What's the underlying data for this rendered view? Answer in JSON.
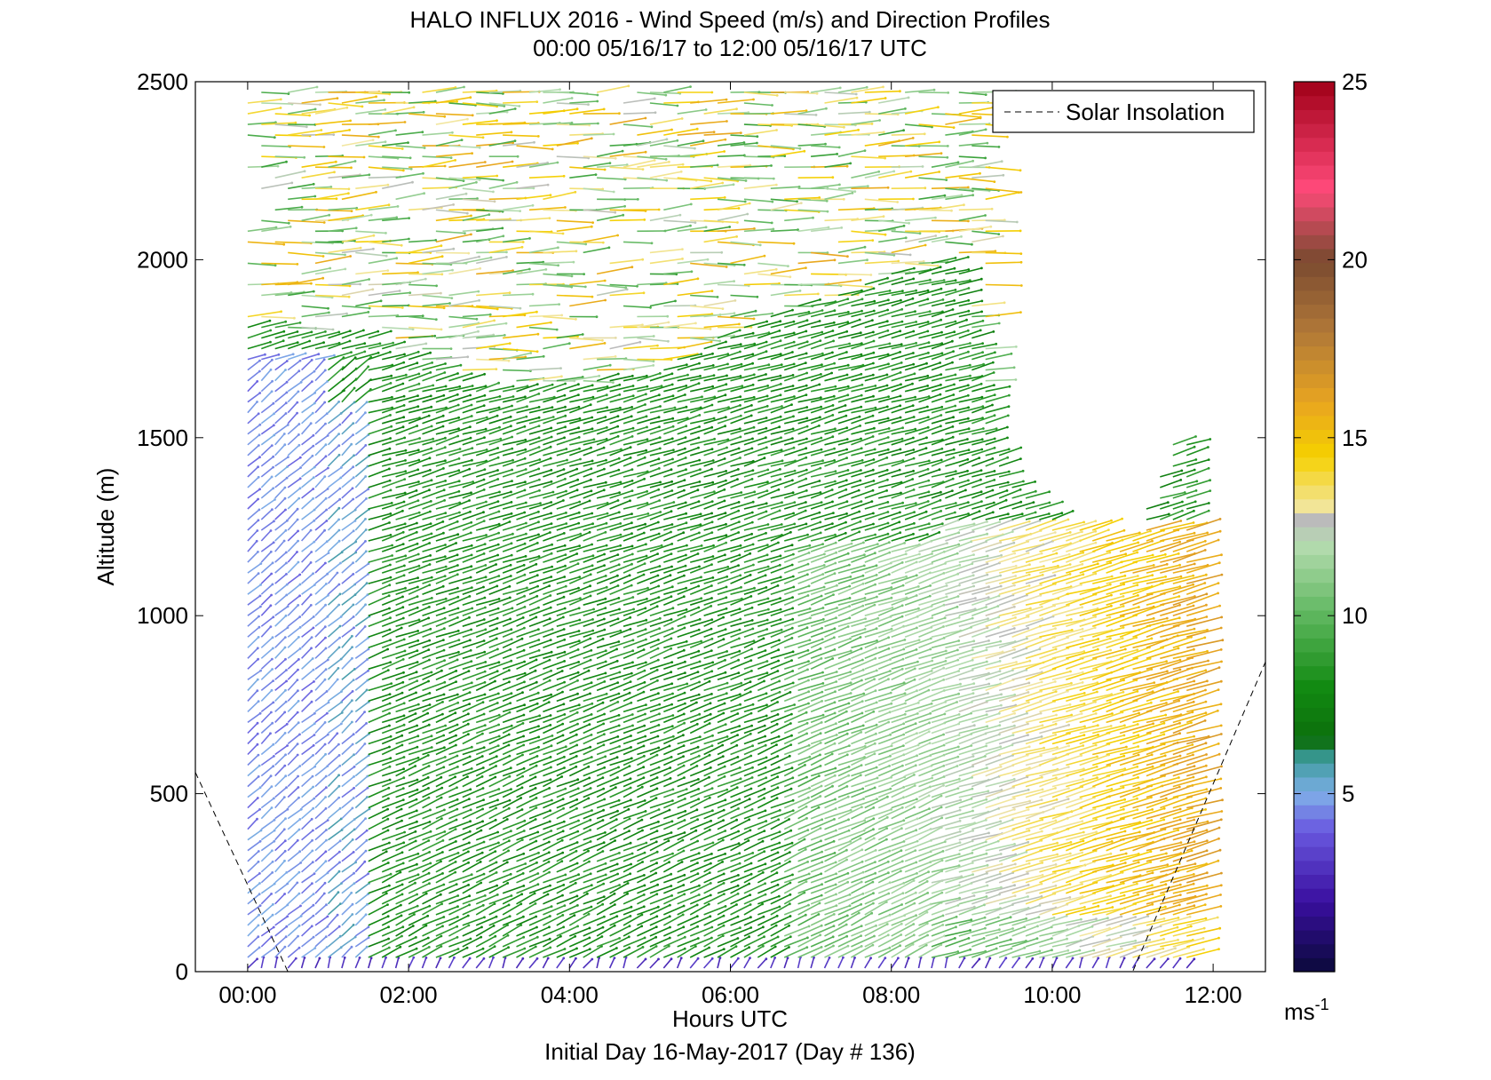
{
  "chart_data": {
    "type": "wind-barb-profile",
    "title": "HALO INFLUX 2016 - Wind Speed (m/s) and Direction Profiles",
    "subtitle": "00:00 05/16/17 to 12:00 05/16/17  UTC",
    "xlabel": "Hours UTC",
    "xlabel2": "Initial Day 16-May-2017 (Day # 136)",
    "ylabel": "Altitude (m)",
    "xlim": [
      -0.65,
      12.65
    ],
    "ylim": [
      0,
      2500
    ],
    "xticks": [
      0,
      2,
      4,
      6,
      8,
      10,
      12
    ],
    "xtick_labels": [
      "00:00",
      "02:00",
      "04:00",
      "06:00",
      "08:00",
      "10:00",
      "12:00"
    ],
    "yticks": [
      0,
      500,
      1000,
      1500,
      2000,
      2500
    ],
    "ytick_labels": [
      "0",
      "500",
      "1000",
      "1500",
      "2000",
      "2500"
    ],
    "legend": {
      "position": "top-right",
      "entries": [
        {
          "name": "Solar Insolation",
          "style": "dashed"
        }
      ]
    },
    "colorbar": {
      "range": [
        0,
        25
      ],
      "ticks": [
        5,
        10,
        15,
        20,
        25
      ],
      "tick_labels": [
        "5",
        "10",
        "15",
        "20",
        "25"
      ],
      "unit_label": "ms",
      "unit_exponent": "-1",
      "stops": [
        {
          "v": 0,
          "color": "#0a0a3a"
        },
        {
          "v": 2,
          "color": "#3a0fa0"
        },
        {
          "v": 4,
          "color": "#6a5ae0"
        },
        {
          "v": 5,
          "color": "#7faee8"
        },
        {
          "v": 6,
          "color": "#3a9a9a"
        },
        {
          "v": 6.5,
          "color": "#0c6e0c"
        },
        {
          "v": 8,
          "color": "#128a12"
        },
        {
          "v": 10,
          "color": "#5db65d"
        },
        {
          "v": 12,
          "color": "#b5dcb0"
        },
        {
          "v": 12.7,
          "color": "#bbbbbb"
        },
        {
          "v": 13,
          "color": "#f2e6a0"
        },
        {
          "v": 14.5,
          "color": "#f5d000"
        },
        {
          "v": 16,
          "color": "#e8a520"
        },
        {
          "v": 18,
          "color": "#b07838"
        },
        {
          "v": 20,
          "color": "#7a4a30"
        },
        {
          "v": 22,
          "color": "#ff4a7a"
        },
        {
          "v": 25,
          "color": "#a00018"
        }
      ]
    },
    "solar_insolation": [
      {
        "x": -0.65,
        "y": 560
      },
      {
        "x": 0.5,
        "y": 0
      },
      {
        "x": 11.0,
        "y": 0
      },
      {
        "x": 12.65,
        "y": 870
      }
    ],
    "profile_times": [
      0.0,
      0.17,
      0.34,
      0.5,
      0.67,
      0.84,
      1.0,
      1.17,
      1.34,
      1.5,
      1.67,
      1.84,
      2.0,
      2.17,
      2.34,
      2.5,
      2.67,
      2.84,
      3.0,
      3.17,
      3.34,
      3.5,
      3.67,
      3.84,
      4.0,
      4.17,
      4.34,
      4.5,
      4.67,
      4.84,
      5.0,
      5.17,
      5.34,
      5.5,
      5.67,
      5.84,
      6.0,
      6.17,
      6.34,
      6.5,
      6.67,
      6.84,
      7.0,
      7.17,
      7.34,
      7.5,
      7.67,
      7.84,
      8.0,
      8.17,
      8.34,
      8.5,
      8.67,
      8.84,
      9.0,
      9.17,
      9.34,
      9.5,
      9.67,
      9.84,
      10.0,
      10.17,
      10.34,
      10.5,
      10.67,
      10.84,
      11.0,
      11.17,
      11.34,
      11.5,
      11.67
    ],
    "altitude_step_m": 30,
    "wind_regimes": [
      {
        "t_start": 0.0,
        "t_end": 1.5,
        "alt_start": 0,
        "alt_end": 1800,
        "speed": 4.5,
        "direction_deg": 220
      },
      {
        "t_start": 1.5,
        "t_end": 8.5,
        "alt_start": 0,
        "alt_end": 1650,
        "speed": 8.5,
        "direction_deg": 240
      },
      {
        "t_start": 8.5,
        "t_end": 11.7,
        "alt_start": 0,
        "alt_end": 1200,
        "speed": 14,
        "direction_deg": 245
      },
      {
        "t_start": 0.0,
        "t_end": 4.0,
        "alt_start": 1800,
        "alt_end": 2500,
        "speed": 11,
        "direction_deg": 270
      }
    ]
  }
}
